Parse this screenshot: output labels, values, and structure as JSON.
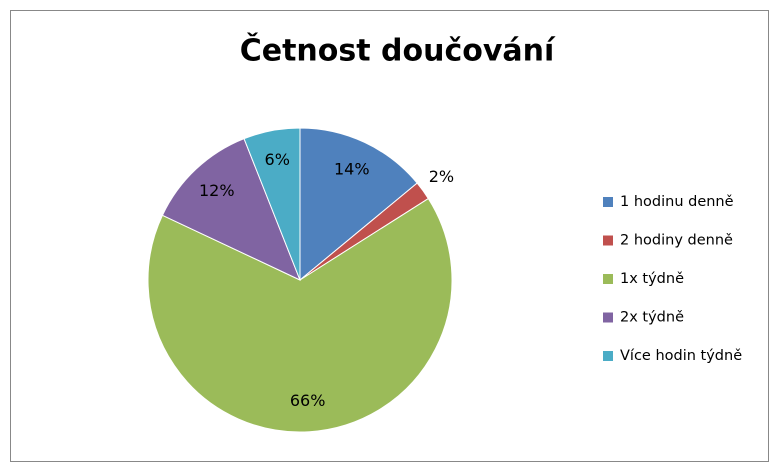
{
  "chart_data": {
    "type": "pie",
    "title": "Četnost doučování",
    "categories": [
      "1 hodinu denně",
      "2 hodiny denně",
      "1x týdně",
      "2x týdně",
      "Více hodin týdně"
    ],
    "values": [
      14,
      2,
      66,
      12,
      6
    ],
    "value_labels": [
      "14%",
      "2%",
      "66%",
      "12%",
      "6%"
    ],
    "colors": [
      "#4f81bd",
      "#c0504d",
      "#9bbb59",
      "#8064a2",
      "#4bacc6"
    ],
    "legend": "right"
  }
}
